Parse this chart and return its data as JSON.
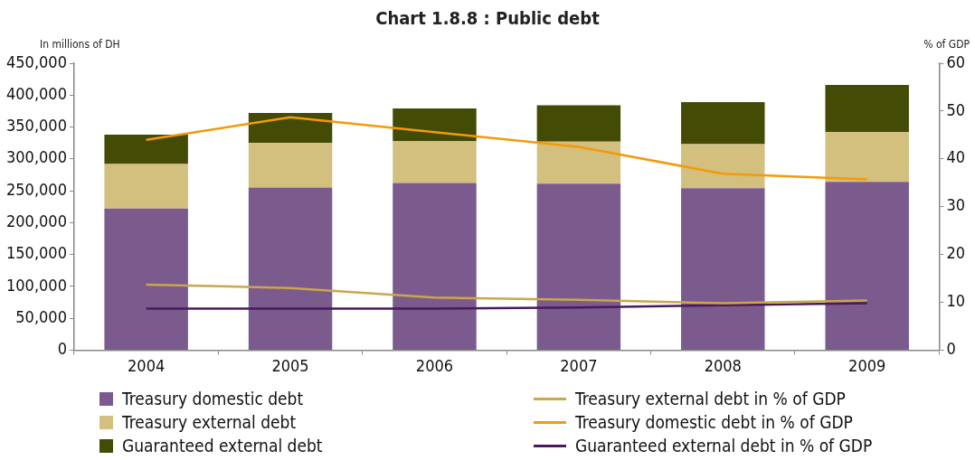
{
  "chart_data": {
    "type": "bar",
    "title": "Chart 1.8.8 : Public debt",
    "ylabel": "In millions of DH",
    "y2label": "% of GDP",
    "categories": [
      "2004",
      "2005",
      "2006",
      "2007",
      "2008",
      "2009"
    ],
    "stacked": true,
    "series": [
      {
        "name": "Treasury domestic debt",
        "color": "#7b5a8d",
        "values": [
          222000,
          255000,
          262000,
          261000,
          254000,
          264000
        ]
      },
      {
        "name": "Treasury external debt",
        "color": "#d3bf7e",
        "values": [
          70000,
          70000,
          66000,
          66000,
          69000,
          78000
        ]
      },
      {
        "name": "Guaranteed external debt",
        "color": "#434b05",
        "values": [
          46000,
          47000,
          51000,
          57000,
          66000,
          74000
        ]
      },
      {
        "name": "Treasury external debt in %  of GDP",
        "type": "line",
        "axis": "y2",
        "color": "#c9a74a",
        "values": [
          13.7,
          13.0,
          11.0,
          10.5,
          9.8,
          10.4
        ]
      },
      {
        "name": "Treasury domestic debt in % of GDP",
        "type": "line",
        "axis": "y2",
        "color": "#f39a0b",
        "values": [
          44.0,
          48.7,
          45.6,
          42.5,
          36.9,
          35.7
        ]
      },
      {
        "name": "Guaranteed external debt in % of GDP",
        "type": "line",
        "axis": "y2",
        "color": "#4a1a5e",
        "values": [
          8.7,
          8.7,
          8.7,
          8.9,
          9.4,
          9.8
        ]
      }
    ],
    "ylim": [
      0,
      450000
    ],
    "yticks": [
      {
        "value": 0,
        "label": "0"
      },
      {
        "value": 50000,
        "label": "50,000"
      },
      {
        "value": 100000,
        "label": "100,000"
      },
      {
        "value": 150000,
        "label": "150,000"
      },
      {
        "value": 200000,
        "label": "200,000"
      },
      {
        "value": 250000,
        "label": "250,000"
      },
      {
        "value": 300000,
        "label": "300,000"
      },
      {
        "value": 350000,
        "label": "350,000"
      },
      {
        "value": 400000,
        "label": "400,000"
      },
      {
        "value": 450000,
        "label": "450,000"
      }
    ],
    "y2lim": [
      0,
      60
    ],
    "y2ticks": [
      0,
      10,
      20,
      30,
      40,
      50,
      60
    ],
    "grid": false,
    "legend": "bottom",
    "marker": "none",
    "line_style": "solid"
  }
}
